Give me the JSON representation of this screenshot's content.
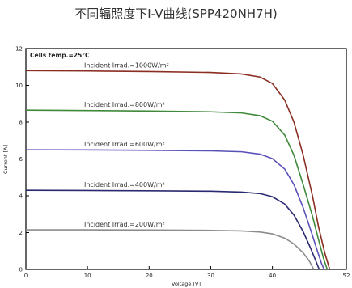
{
  "chart_data": {
    "type": "line",
    "title": "不同辐照度下I-V曲线(SPP420NH7H)",
    "xlabel": "Voltage [V]",
    "ylabel": "Current [A]",
    "xlim": [
      0,
      52
    ],
    "ylim": [
      0,
      12
    ],
    "xticks": [
      "0",
      "10",
      "20",
      "30",
      "40",
      "52"
    ],
    "yticks": [
      "0",
      "2",
      "4",
      "6",
      "8",
      "10",
      "12"
    ],
    "grid": false,
    "temperature_note": "Cells temp.=25°C",
    "series": [
      {
        "name": "Incident Irrad.=1000W/m²",
        "color": "#8b2e22",
        "points": [
          [
            0,
            10.8
          ],
          [
            10,
            10.78
          ],
          [
            20,
            10.75
          ],
          [
            30,
            10.7
          ],
          [
            35,
            10.62
          ],
          [
            38,
            10.45
          ],
          [
            40,
            10.1
          ],
          [
            42,
            9.2
          ],
          [
            43.5,
            8.0
          ],
          [
            45,
            6.2
          ],
          [
            46.5,
            4.0
          ],
          [
            47.5,
            2.3
          ],
          [
            48.5,
            0.9
          ],
          [
            49.3,
            0
          ]
        ]
      },
      {
        "name": "Incident Irrad.=800W/m²",
        "color": "#3e8a3a",
        "points": [
          [
            0,
            8.65
          ],
          [
            10,
            8.63
          ],
          [
            20,
            8.6
          ],
          [
            30,
            8.56
          ],
          [
            35,
            8.5
          ],
          [
            38,
            8.35
          ],
          [
            40,
            8.05
          ],
          [
            42,
            7.3
          ],
          [
            43.5,
            6.2
          ],
          [
            45,
            4.6
          ],
          [
            46.5,
            2.9
          ],
          [
            47.5,
            1.6
          ],
          [
            48.3,
            0.6
          ],
          [
            48.9,
            0
          ]
        ]
      },
      {
        "name": "Incident Irrad.=600W/m²",
        "color": "#5a52b8",
        "points": [
          [
            0,
            6.5
          ],
          [
            10,
            6.49
          ],
          [
            20,
            6.47
          ],
          [
            30,
            6.44
          ],
          [
            35,
            6.39
          ],
          [
            38,
            6.26
          ],
          [
            40,
            6.02
          ],
          [
            42,
            5.45
          ],
          [
            43.5,
            4.6
          ],
          [
            45,
            3.35
          ],
          [
            46.3,
            2.05
          ],
          [
            47.3,
            1.0
          ],
          [
            48.0,
            0.3
          ],
          [
            48.4,
            0
          ]
        ]
      },
      {
        "name": "Incident Irrad.=400W/m²",
        "color": "#2a2a72",
        "points": [
          [
            0,
            4.3
          ],
          [
            10,
            4.29
          ],
          [
            20,
            4.27
          ],
          [
            30,
            4.25
          ],
          [
            35,
            4.2
          ],
          [
            38,
            4.12
          ],
          [
            40,
            3.95
          ],
          [
            42,
            3.55
          ],
          [
            43.5,
            2.95
          ],
          [
            45,
            2.05
          ],
          [
            46.2,
            1.15
          ],
          [
            47.0,
            0.5
          ],
          [
            47.6,
            0
          ]
        ]
      },
      {
        "name": "Incident Irrad.=200W/m²",
        "color": "#8c8c8c",
        "points": [
          [
            0,
            2.15
          ],
          [
            10,
            2.15
          ],
          [
            20,
            2.14
          ],
          [
            30,
            2.12
          ],
          [
            35,
            2.09
          ],
          [
            38,
            2.03
          ],
          [
            40,
            1.93
          ],
          [
            42,
            1.7
          ],
          [
            43.5,
            1.38
          ],
          [
            45,
            0.9
          ],
          [
            46.0,
            0.45
          ],
          [
            46.7,
            0
          ]
        ]
      }
    ]
  }
}
